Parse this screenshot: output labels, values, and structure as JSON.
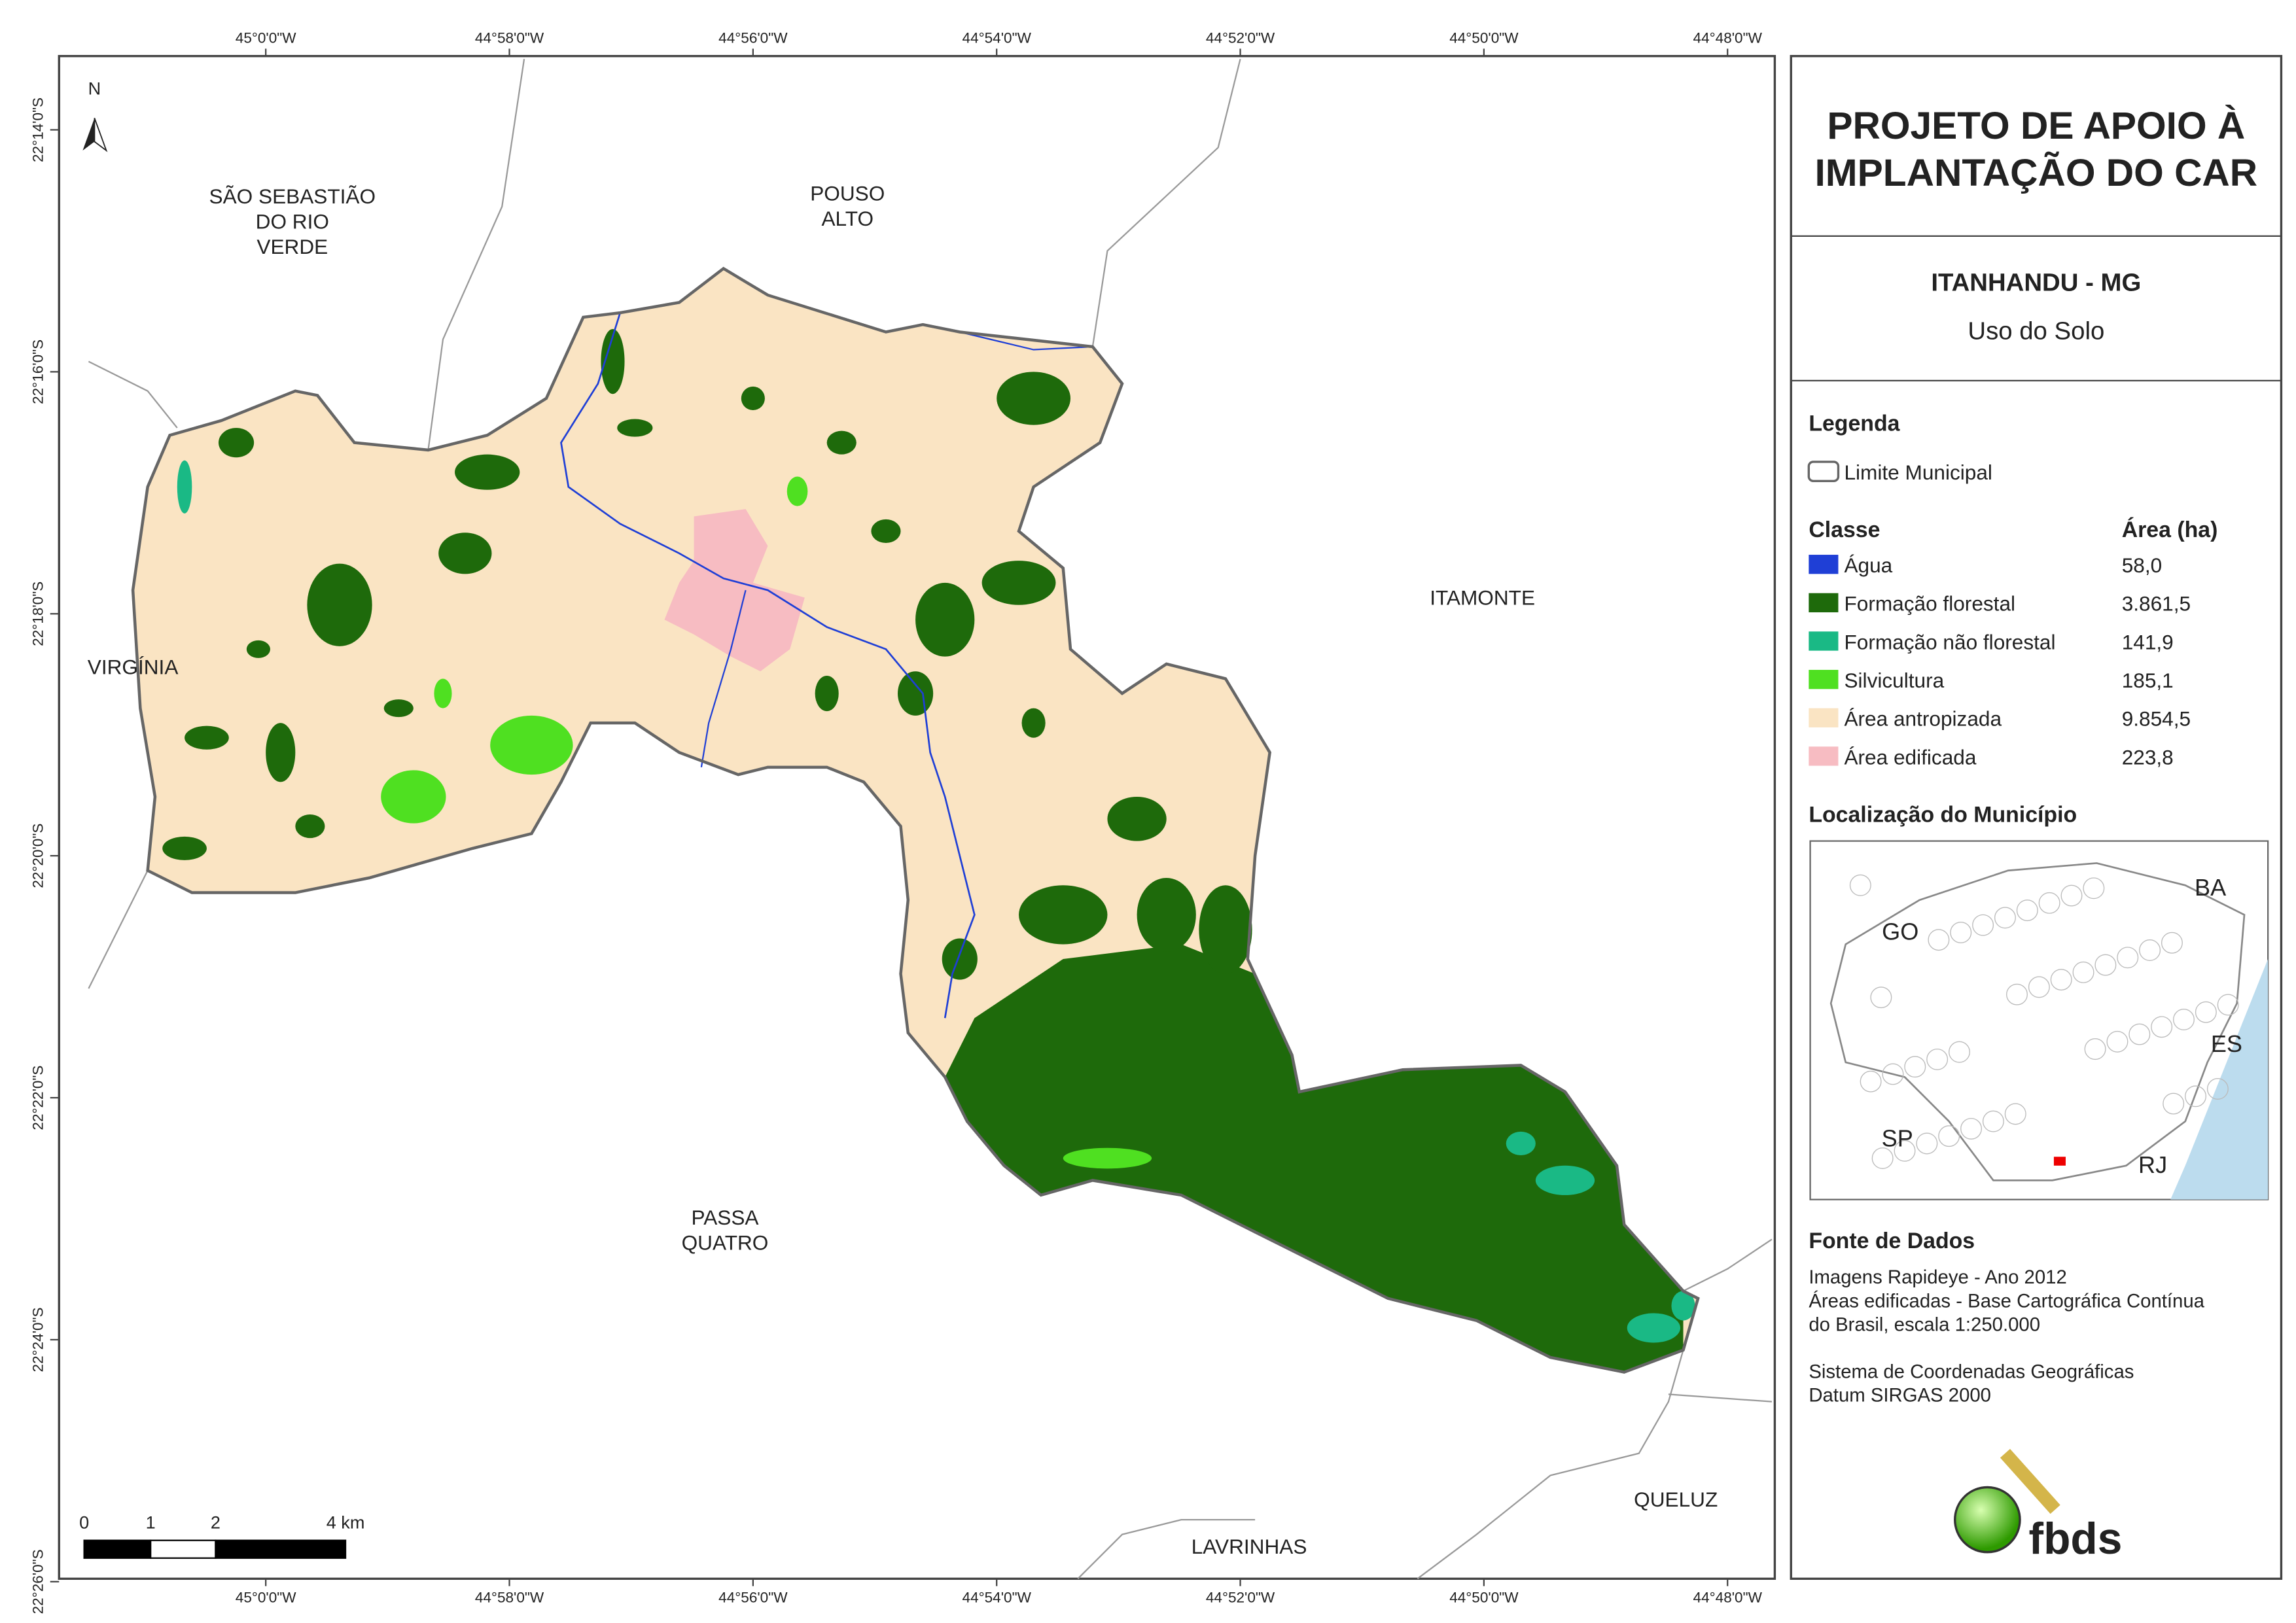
{
  "map": {
    "north": "N",
    "lon_labels": [
      "45°0'0\"W",
      "44°58'0\"W",
      "44°56'0\"W",
      "44°54'0\"W",
      "44°52'0\"W",
      "44°50'0\"W",
      "44°48'0\"W"
    ],
    "lat_labels": [
      "22°14'0\"S",
      "22°16'0\"S",
      "22°18'0\"S",
      "22°20'0\"S",
      "22°22'0\"S",
      "22°24'0\"S",
      "22°26'0\"S"
    ],
    "places": [
      [
        "SÃO SEBASTIÃO",
        "DO RIO",
        "VERDE"
      ],
      [
        "POUSO",
        "ALTO"
      ],
      [
        "ITAMONTE"
      ],
      [
        "VIRGÍNIA"
      ],
      [
        "PASSA",
        "QUATRO"
      ],
      [
        "QUELUZ"
      ],
      [
        "LAVRINHAS"
      ]
    ],
    "scale": [
      "0",
      "1",
      "2",
      "4 km"
    ]
  },
  "panel": {
    "title": [
      "PROJETO DE APOIO À",
      "IMPLANTAÇÃO DO CAR"
    ],
    "municipality": "ITANHANDU - MG",
    "theme": "Uso do Solo",
    "legend_title": "Legenda",
    "boundary": "Limite Municipal",
    "class_header": "Classe",
    "area_header": "Área (ha)",
    "classes": [
      {
        "name": "Água",
        "area": "58,0",
        "color": "#1f3fd6"
      },
      {
        "name": "Formação florestal",
        "area": "3.861,5",
        "color": "#1e6a0b"
      },
      {
        "name": "Formação não florestal",
        "area": "141,9",
        "color": "#1ab985"
      },
      {
        "name": "Silvicultura",
        "area": "185,1",
        "color": "#4fe021"
      },
      {
        "name": "Área antropizada",
        "area": "9.854,5",
        "color": "#fae4c3"
      },
      {
        "name": "Área edificada",
        "area": "223,8",
        "color": "#f7bcc2"
      }
    ],
    "location_title": "Localização do Município",
    "states": [
      "GO",
      "BA",
      "ES",
      "SP",
      "RJ"
    ],
    "source_title": "Fonte de Dados",
    "source_lines": [
      "Imagens Rapideye - Ano 2012",
      "Áreas edificadas - Base Cartográfica Contínua",
      "do Brasil, escala 1:250.000",
      "",
      "Sistema de Coordenadas Geográficas",
      "Datum SIRGAS 2000"
    ],
    "logo": "fbds"
  }
}
